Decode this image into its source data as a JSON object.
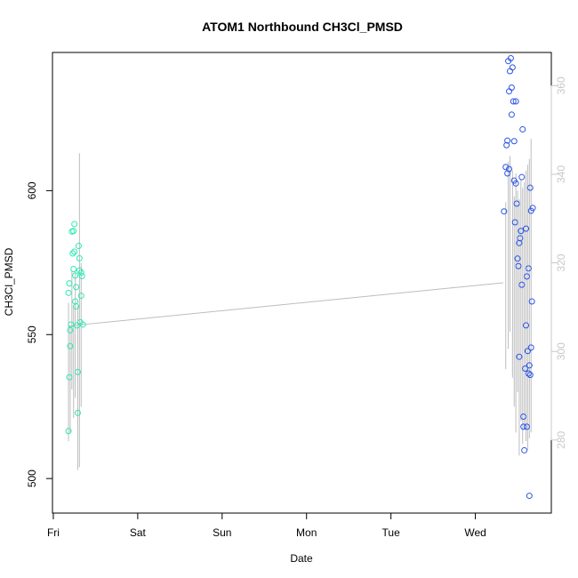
{
  "chart_data": {
    "type": "scatter",
    "title": "ATOM1 Northbound CH3Cl_PMSD",
    "xlabel": "Date",
    "ylabel": "CH3Cl_PMSD",
    "x_tick_labels": [
      "Fri",
      "Sat",
      "Sun",
      "Mon",
      "Tue",
      "Wed"
    ],
    "xlim": [
      -0.01,
      5.9
    ],
    "ylim": [
      488,
      648
    ],
    "y_ticks": [
      500,
      550,
      600
    ],
    "y2lim": [
      263.5,
      367.5
    ],
    "y2_ticks": [
      280,
      300,
      320,
      340,
      360
    ],
    "colors": {
      "series1": "#2ee8b4",
      "series2": "#2a55e6",
      "trace": "#bdbdbd",
      "right_axis": "#c8c8c8"
    },
    "trace_line": {
      "x": [
        0.18,
        5.33
      ],
      "y": [
        553,
        568
      ]
    },
    "series": [
      {
        "values": [
          [
            0.18,
            516.5
          ],
          [
            0.19,
            535.2
          ],
          [
            0.2,
            546
          ],
          [
            0.2,
            551.5
          ],
          [
            0.21,
            553.5
          ],
          [
            0.18,
            564.5
          ],
          [
            0.19,
            567.8
          ],
          [
            0.22,
            585.8
          ],
          [
            0.23,
            578.2
          ],
          [
            0.24,
            572.8
          ],
          [
            0.24,
            586
          ],
          [
            0.25,
            588.4
          ],
          [
            0.25,
            578.8
          ],
          [
            0.26,
            570.5
          ],
          [
            0.26,
            561.5
          ],
          [
            0.27,
            559.8
          ],
          [
            0.27,
            566.5
          ],
          [
            0.28,
            553.2
          ],
          [
            0.29,
            537
          ],
          [
            0.29,
            522.8
          ],
          [
            0.3,
            580.8
          ],
          [
            0.31,
            576.5
          ],
          [
            0.31,
            572.3
          ],
          [
            0.32,
            554.3
          ],
          [
            0.33,
            563.5
          ],
          [
            0.33,
            571.5
          ],
          [
            0.34,
            570.3
          ],
          [
            0.35,
            553.5
          ]
        ]
      },
      {
        "values": [
          [
            5.34,
            592.8
          ],
          [
            5.36,
            608.2
          ],
          [
            5.37,
            615.8
          ],
          [
            5.38,
            617.4
          ],
          [
            5.38,
            606
          ],
          [
            5.39,
            645
          ],
          [
            5.4,
            634.5
          ],
          [
            5.4,
            607.5
          ],
          [
            5.41,
            641.5
          ],
          [
            5.42,
            646
          ],
          [
            5.43,
            635.8
          ],
          [
            5.43,
            626.4
          ],
          [
            5.44,
            642.8
          ],
          [
            5.45,
            631
          ],
          [
            5.46,
            617.2
          ],
          [
            5.46,
            603.5
          ],
          [
            5.47,
            589
          ],
          [
            5.48,
            631
          ],
          [
            5.48,
            602.5
          ],
          [
            5.49,
            595.5
          ],
          [
            5.5,
            576.4
          ],
          [
            5.51,
            573.8
          ],
          [
            5.52,
            581.8
          ],
          [
            5.52,
            542.3
          ],
          [
            5.53,
            583.5
          ],
          [
            5.54,
            586
          ],
          [
            5.55,
            567.3
          ],
          [
            5.55,
            604.7
          ],
          [
            5.56,
            621.3
          ],
          [
            5.57,
            521.5
          ],
          [
            5.57,
            518
          ],
          [
            5.58,
            509.8
          ],
          [
            5.59,
            538.2
          ],
          [
            5.6,
            553.2
          ],
          [
            5.6,
            586.8
          ],
          [
            5.61,
            570.2
          ],
          [
            5.61,
            518
          ],
          [
            5.62,
            544.3
          ],
          [
            5.63,
            573
          ],
          [
            5.63,
            536.5
          ],
          [
            5.64,
            494
          ],
          [
            5.64,
            539.3
          ],
          [
            5.65,
            601
          ],
          [
            5.65,
            536
          ],
          [
            5.66,
            593
          ],
          [
            5.66,
            545.5
          ],
          [
            5.67,
            561.5
          ],
          [
            5.68,
            594
          ]
        ]
      }
    ]
  }
}
